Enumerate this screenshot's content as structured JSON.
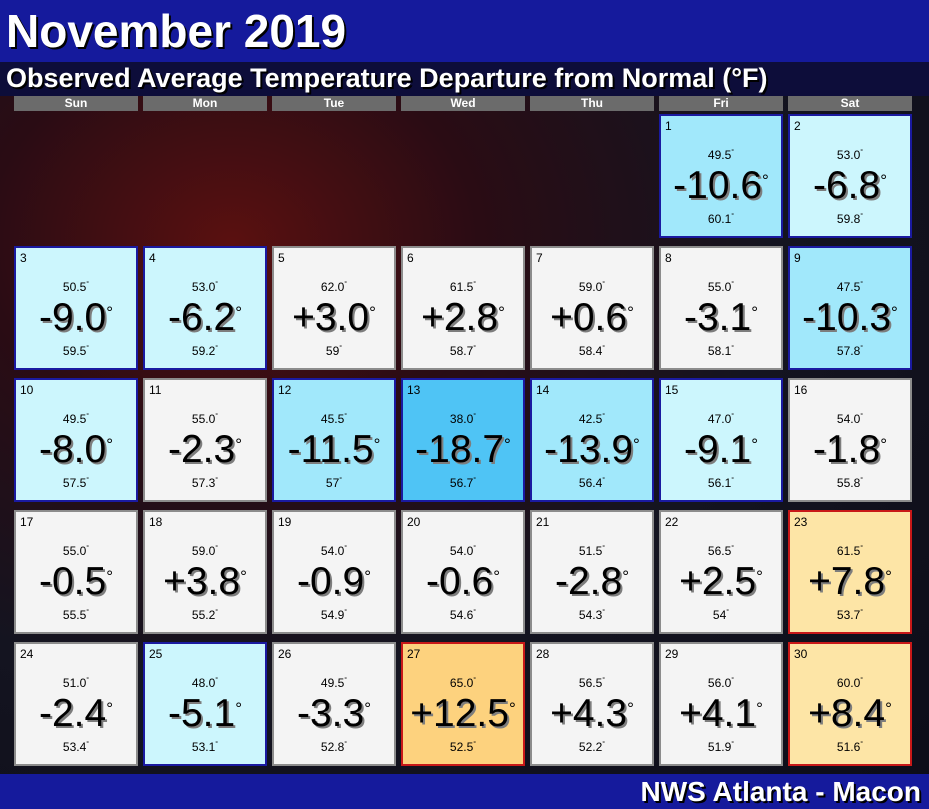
{
  "header": {
    "title": "November 2019",
    "subtitle": "Observed Average Temperature Departure from Normal (°F)"
  },
  "weekdays": [
    "Sun",
    "Mon",
    "Tue",
    "Wed",
    "Thu",
    "Fri",
    "Sat"
  ],
  "degree_symbol": "°",
  "first_weekday_index": 5,
  "days": [
    {
      "day": "1",
      "observed": "49.5",
      "departure": "-10.6",
      "normal": "60.1",
      "tone": "cool2"
    },
    {
      "day": "2",
      "observed": "53.0",
      "departure": "-6.8",
      "normal": "59.8",
      "tone": "cool1"
    },
    {
      "day": "3",
      "observed": "50.5",
      "departure": "-9.0",
      "normal": "59.5",
      "tone": "cool1"
    },
    {
      "day": "4",
      "observed": "53.0",
      "departure": "-6.2",
      "normal": "59.2",
      "tone": "cool1"
    },
    {
      "day": "5",
      "observed": "62.0",
      "departure": "+3.0",
      "normal": "59",
      "tone": "neutral"
    },
    {
      "day": "6",
      "observed": "61.5",
      "departure": "+2.8",
      "normal": "58.7",
      "tone": "neutral"
    },
    {
      "day": "7",
      "observed": "59.0",
      "departure": "+0.6",
      "normal": "58.4",
      "tone": "neutral"
    },
    {
      "day": "8",
      "observed": "55.0",
      "departure": "-3.1",
      "normal": "58.1",
      "tone": "neutral"
    },
    {
      "day": "9",
      "observed": "47.5",
      "departure": "-10.3",
      "normal": "57.8",
      "tone": "cool2"
    },
    {
      "day": "10",
      "observed": "49.5",
      "departure": "-8.0",
      "normal": "57.5",
      "tone": "cool1"
    },
    {
      "day": "11",
      "observed": "55.0",
      "departure": "-2.3",
      "normal": "57.3",
      "tone": "neutral"
    },
    {
      "day": "12",
      "observed": "45.5",
      "departure": "-11.5",
      "normal": "57",
      "tone": "cool2"
    },
    {
      "day": "13",
      "observed": "38.0",
      "departure": "-18.7",
      "normal": "56.7",
      "tone": "cool3"
    },
    {
      "day": "14",
      "observed": "42.5",
      "departure": "-13.9",
      "normal": "56.4",
      "tone": "cool2"
    },
    {
      "day": "15",
      "observed": "47.0",
      "departure": "-9.1",
      "normal": "56.1",
      "tone": "cool1"
    },
    {
      "day": "16",
      "observed": "54.0",
      "departure": "-1.8",
      "normal": "55.8",
      "tone": "neutral"
    },
    {
      "day": "17",
      "observed": "55.0",
      "departure": "-0.5",
      "normal": "55.5",
      "tone": "neutral"
    },
    {
      "day": "18",
      "observed": "59.0",
      "departure": "+3.8",
      "normal": "55.2",
      "tone": "neutral"
    },
    {
      "day": "19",
      "observed": "54.0",
      "departure": "-0.9",
      "normal": "54.9",
      "tone": "neutral"
    },
    {
      "day": "20",
      "observed": "54.0",
      "departure": "-0.6",
      "normal": "54.6",
      "tone": "neutral"
    },
    {
      "day": "21",
      "observed": "51.5",
      "departure": "-2.8",
      "normal": "54.3",
      "tone": "neutral"
    },
    {
      "day": "22",
      "observed": "56.5",
      "departure": "+2.5",
      "normal": "54",
      "tone": "neutral"
    },
    {
      "day": "23",
      "observed": "61.5",
      "departure": "+7.8",
      "normal": "53.7",
      "tone": "warm1"
    },
    {
      "day": "24",
      "observed": "51.0",
      "departure": "-2.4",
      "normal": "53.4",
      "tone": "neutral"
    },
    {
      "day": "25",
      "observed": "48.0",
      "departure": "-5.1",
      "normal": "53.1",
      "tone": "cool1"
    },
    {
      "day": "26",
      "observed": "49.5",
      "departure": "-3.3",
      "normal": "52.8",
      "tone": "neutral"
    },
    {
      "day": "27",
      "observed": "65.0",
      "departure": "+12.5",
      "normal": "52.5",
      "tone": "warm2"
    },
    {
      "day": "28",
      "observed": "56.5",
      "departure": "+4.3",
      "normal": "52.2",
      "tone": "neutral"
    },
    {
      "day": "29",
      "observed": "56.0",
      "departure": "+4.1",
      "normal": "51.9",
      "tone": "neutral"
    },
    {
      "day": "30",
      "observed": "60.0",
      "departure": "+8.4",
      "normal": "51.6",
      "tone": "warm1"
    }
  ],
  "footer": {
    "credit": "NWS Atlanta - Macon"
  }
}
